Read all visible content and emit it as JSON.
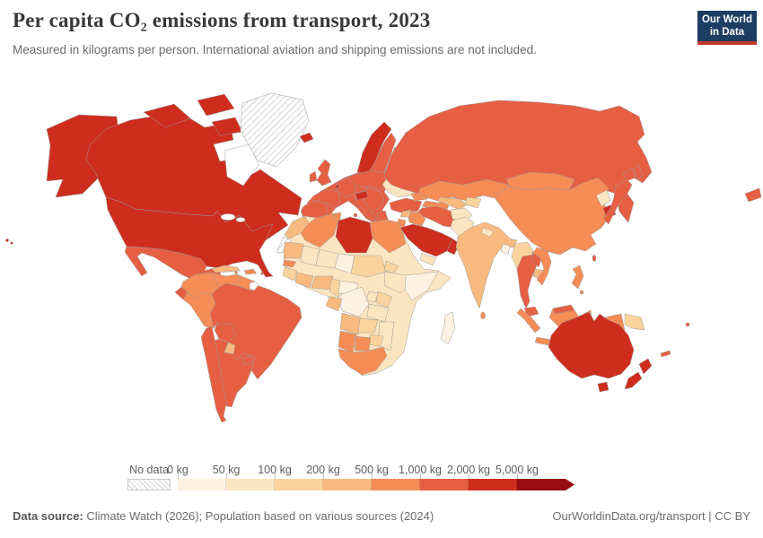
{
  "header": {
    "title": "Per capita CO₂ emissions from transport, 2023",
    "subtitle": "Measured in kilograms per person. International aviation and shipping emissions are not included.",
    "logo": {
      "line1": "Our World",
      "line2": "in Data",
      "bg_color": "#1d3d63",
      "accent_color": "#c0392b"
    }
  },
  "legend": {
    "no_data_label": "No data",
    "tick_labels": [
      "0 kg",
      "50 kg",
      "100 kg",
      "200 kg",
      "500 kg",
      "1,000 kg",
      "2,000 kg",
      "5,000 kg"
    ]
  },
  "footer": {
    "source_label": "Data source:",
    "source_text": " Climate Watch (2026); Population based on various sources (2024)",
    "license_text": "OurWorldinData.org/transport | CC BY"
  },
  "chart_data": {
    "type": "choropleth",
    "title": "Per capita CO₂ emissions from transport, 2023",
    "unit": "kilograms of CO₂ per person",
    "year": 2023,
    "legend_position": "bottom",
    "bins": [
      {
        "range": "0–50 kg",
        "color": "#FDF1E1"
      },
      {
        "range": "50–100 kg",
        "color": "#FCE5C1"
      },
      {
        "range": "100–200 kg",
        "color": "#FBD49D"
      },
      {
        "range": "200–500 kg",
        "color": "#F9BA80"
      },
      {
        "range": "500–1,000 kg",
        "color": "#F68C56"
      },
      {
        "range": "1,000–2,000 kg",
        "color": "#E75F43"
      },
      {
        "range": "2,000–5,000 kg",
        "color": "#CE2D1E"
      },
      {
        "range": "5,000+ kg",
        "color": "#970C10"
      }
    ],
    "no_data_pattern": "diagonal-hatch",
    "regions": {
      "alaska": 6,
      "canada": 6,
      "usa": 6,
      "hawaii": 6,
      "arctic_a": 6,
      "arctic_b": 6,
      "arctic_c": 6,
      "greenland": "no-data",
      "mexico": 5,
      "guatemala": 3,
      "honduras_nicaragua": 4,
      "costarica_panama": 5,
      "cuba": 3,
      "hispaniola": 4,
      "puertorico": 5,
      "trinidad": 5,
      "colombia": 4,
      "venezuela": 4,
      "guyanas": 4,
      "frguiana": "blank",
      "ecuador": 5,
      "peru": 4,
      "brazil": 5,
      "bolivia": 5,
      "paraguay": 3,
      "chile": 5,
      "argentina": 5,
      "uruguay": 5,
      "iceland": 6,
      "norway": 6,
      "sweden": 5,
      "finland": 5,
      "denmark": 5,
      "uk": 5,
      "ireland": 5,
      "europe_base": 5,
      "iberia": 5,
      "france": 5,
      "germany_central": 5,
      "italy": 5,
      "sicily": 5,
      "sardinia": 5,
      "poland_baltics": 5,
      "balkans": 5,
      "greece": 5,
      "ukraine": 1,
      "austria_slovenia": 6,
      "luxembourg": 7,
      "turkey": 5,
      "russia": 5,
      "russia_fareast": 5,
      "sakhalin": 5,
      "caucasus": 4,
      "kazakhstan": 4,
      "turkmenistan": 4,
      "uzbekistan": 3,
      "kyrgyz_tajik": 2,
      "iran": 5,
      "iraq": 4,
      "syria": 3,
      "jordan_israel": 4,
      "saudi": 6,
      "oman_uae": 6,
      "yemen": 1,
      "afghanistan": 1,
      "pakistan": 1,
      "india": 3,
      "nepal": 1,
      "bangladesh": 0,
      "srilanka": 4,
      "mongolia": 4,
      "china": 4,
      "nkorea": 1,
      "skorea": 6,
      "japan_hokkaido": 5,
      "japan_main": 5,
      "taiwan": 5,
      "myanmar": 2,
      "thailand": 5,
      "laos": 5,
      "cambodia": 3,
      "vietnam": 4,
      "malaysia_pen": 5,
      "malaysia_borneo": 5,
      "sumatra": 4,
      "java": 4,
      "borneo": 4,
      "sulawesi": 4,
      "papua_id": 4,
      "png": 2,
      "philippines": 4,
      "philippines_s": 4,
      "australia": 6,
      "tasmania": 6,
      "nz_north": 6,
      "nz_south": 6,
      "fiji": 5,
      "newcaledonia": 5,
      "africa_base": 1,
      "morocco": 3,
      "wsahara": "no-data",
      "algeria": 4,
      "tunisia": 4,
      "libya": 6,
      "egypt": 4,
      "mauritania": 3,
      "mali": 1,
      "niger": 1,
      "chad": 0,
      "sudan": 2,
      "eritrea": 2,
      "ethiopia": 1,
      "somalia": 0,
      "senegal": 4,
      "guinea": 2,
      "ivorycoast_ghana": 3,
      "nigeria": 3,
      "cameroon": 2,
      "car": 0,
      "drc": 0,
      "gabon_congo": 3,
      "uganda": 1,
      "kenya": 2,
      "tanzania": 1,
      "angola": 3,
      "zambia": 2,
      "mozambique": 1,
      "zimbabwe": 2,
      "namibia": 4,
      "botswana": 4,
      "southafrica": 4,
      "madagascar": 0
    }
  }
}
